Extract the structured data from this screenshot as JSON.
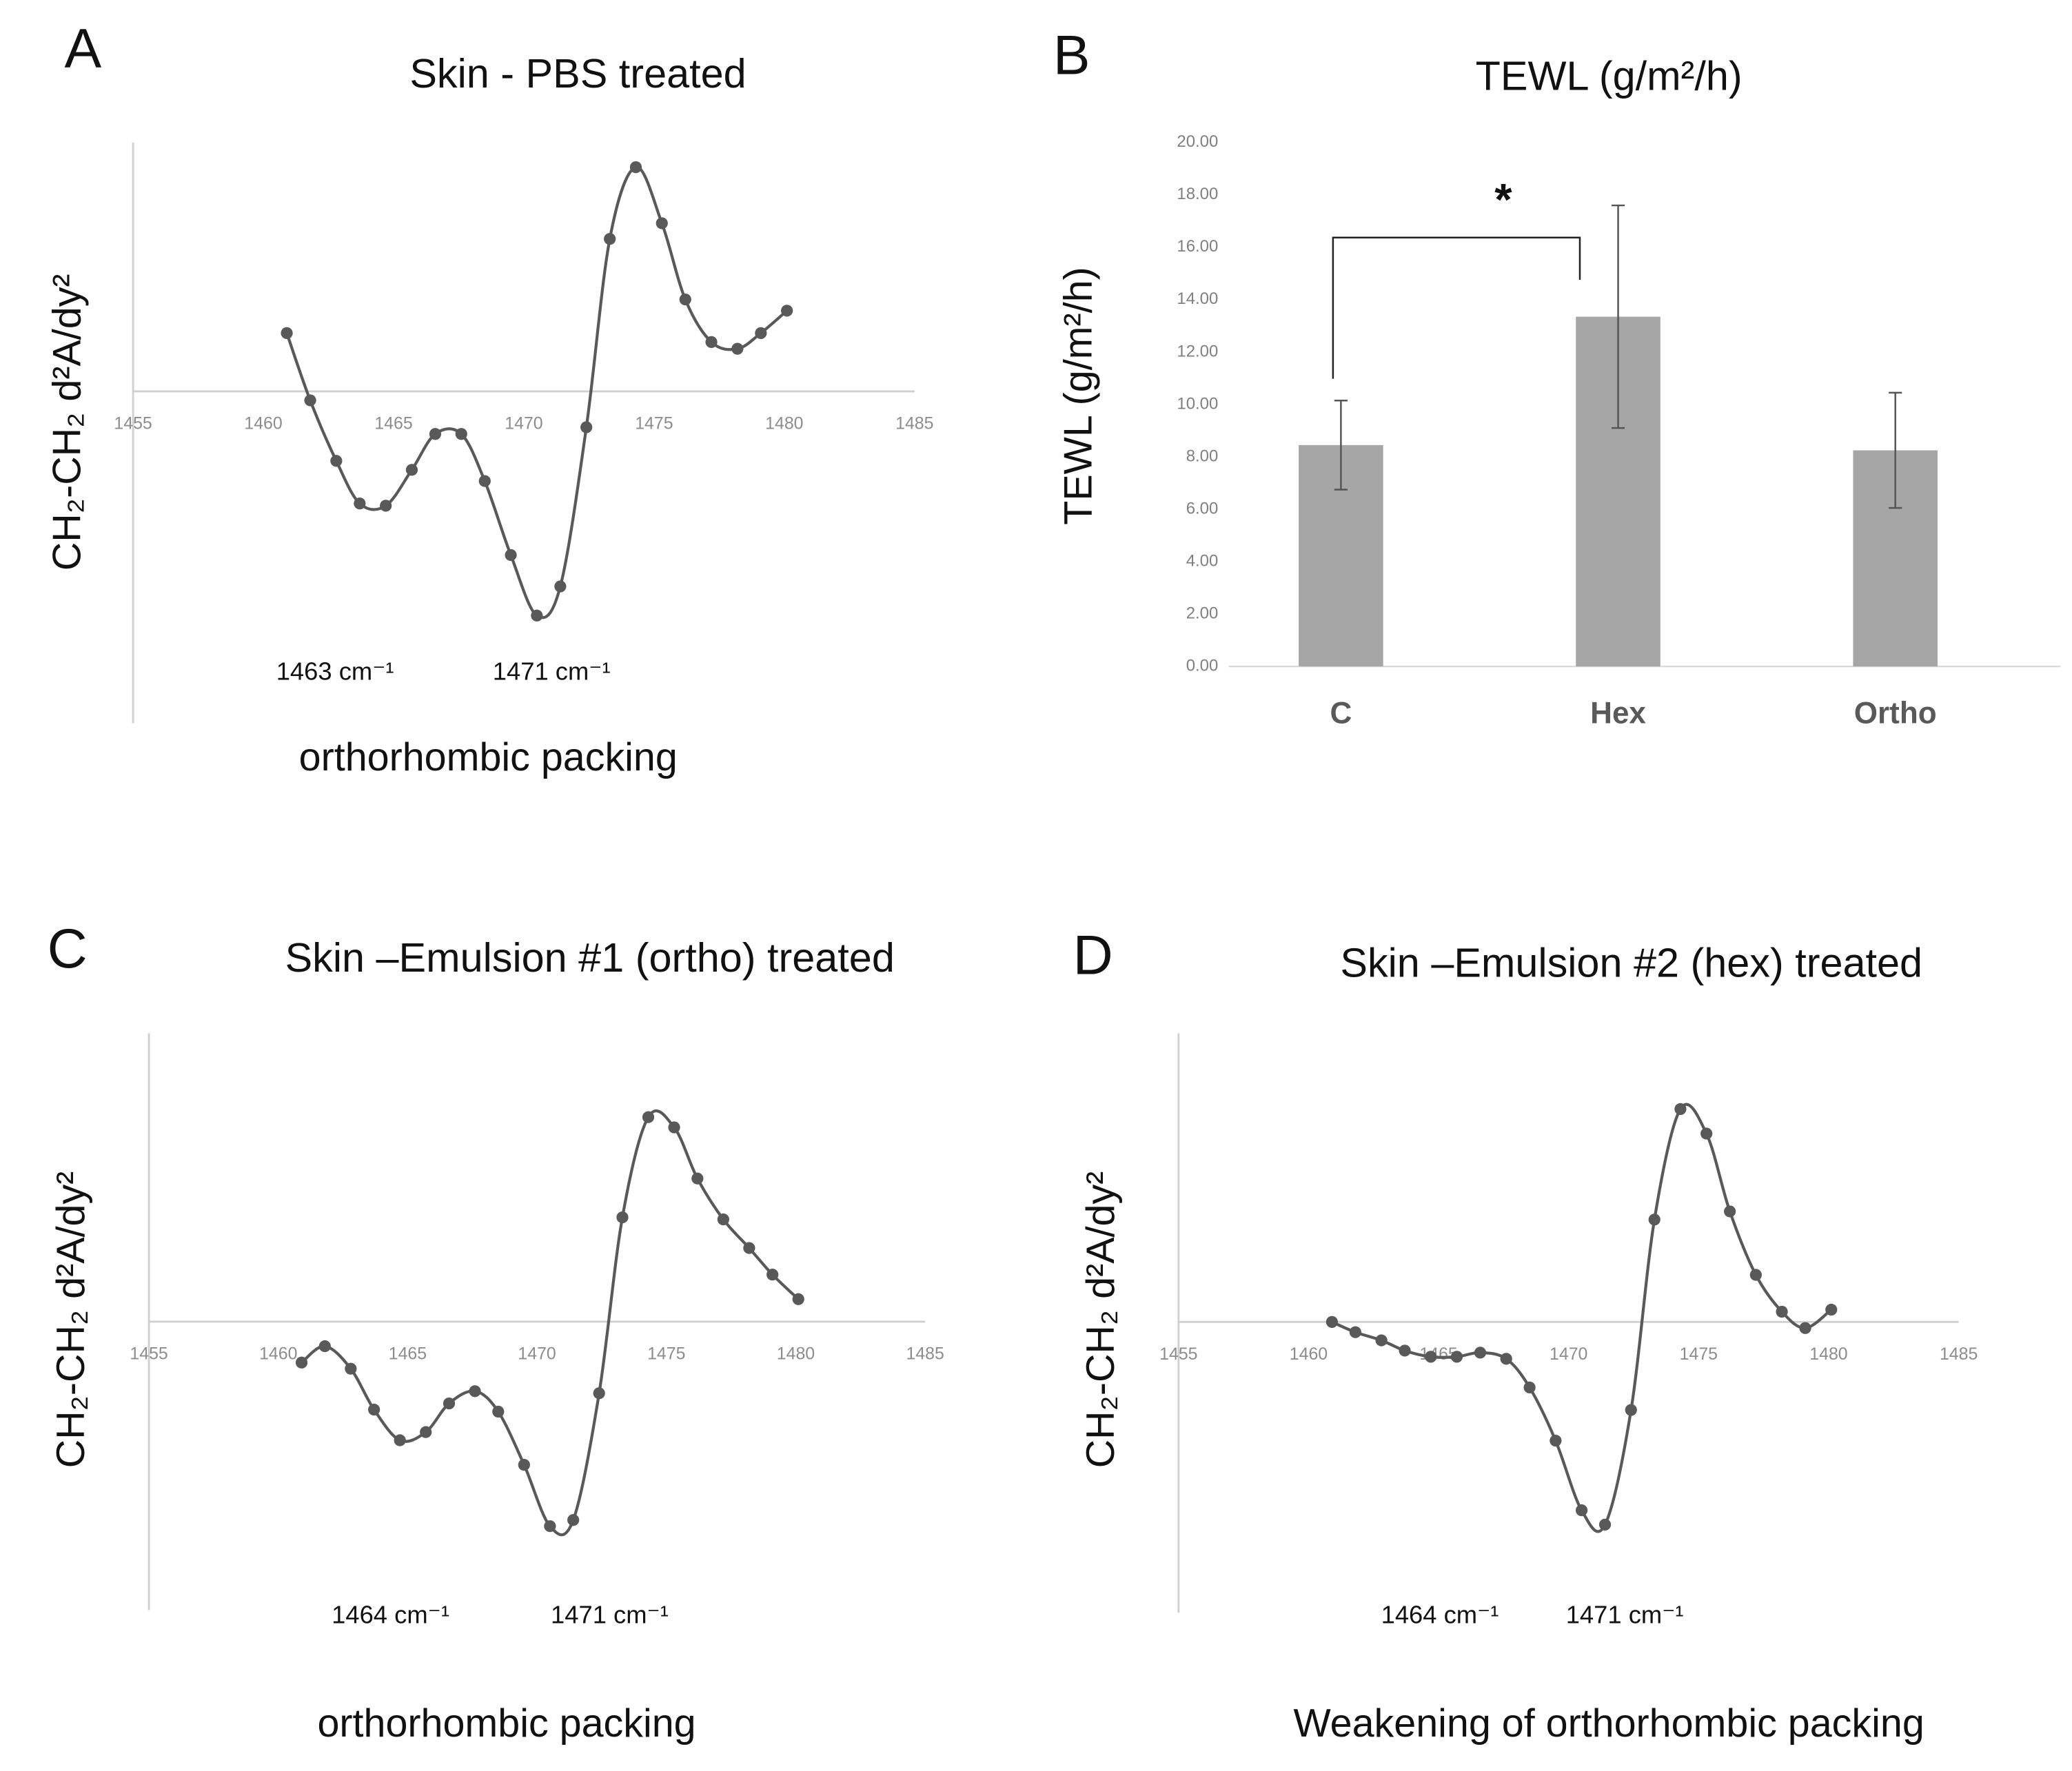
{
  "chart_data": [
    {
      "type": "line",
      "panel_label": "A",
      "title": "Skin - PBS  treated",
      "ylabel": "CH₂-CH₂ d²A/dy²",
      "x": [
        1460.9,
        1461.8,
        1462.8,
        1463.7,
        1464.7,
        1465.7,
        1466.6,
        1467.6,
        1468.5,
        1469.5,
        1470.5,
        1471.4,
        1472.4,
        1473.3,
        1474.3,
        1475.3,
        1476.2,
        1477.2,
        1478.2,
        1479.1,
        1480.1
      ],
      "values": [
        0.26,
        -0.04,
        -0.31,
        -0.5,
        -0.51,
        -0.35,
        -0.19,
        -0.19,
        -0.4,
        -0.73,
        -1.0,
        -0.87,
        -0.16,
        0.68,
        1.0,
        0.75,
        0.41,
        0.22,
        0.19,
        0.26,
        0.36
      ],
      "color": "#595959",
      "xlim": [
        1455,
        1485
      ],
      "ylim": [
        -1.48,
        1.11
      ],
      "xticks": [
        1455,
        1460,
        1465,
        1470,
        1475,
        1480,
        1485
      ],
      "annotations": [
        "1463 cm⁻¹",
        "1471 cm⁻¹"
      ],
      "note": "orthorhombic packing"
    },
    {
      "type": "bar",
      "panel_label": "B",
      "title": "TEWL (g/m²/h)",
      "ylabel": "TEWL (g/m²/h)",
      "categories": [
        "C",
        "Hex",
        "Ortho"
      ],
      "values": [
        8.45,
        13.35,
        8.25
      ],
      "errors": [
        1.7,
        4.25,
        2.2
      ],
      "color": "#a6a6a6",
      "ylim": [
        0,
        20
      ],
      "yticks": [
        {
          "value": 0,
          "label": "0.00"
        },
        {
          "value": 2,
          "label": "2.00"
        },
        {
          "value": 4,
          "label": "4.00"
        },
        {
          "value": 6,
          "label": "6.00"
        },
        {
          "value": 8,
          "label": "8.00"
        },
        {
          "value": 10,
          "label": "10.00"
        },
        {
          "value": 12,
          "label": "12.00"
        },
        {
          "value": 14,
          "label": "14.00"
        },
        {
          "value": 16,
          "label": "16.00"
        },
        {
          "value": 18,
          "label": "18.00"
        },
        {
          "value": 20,
          "label": "20.00"
        }
      ],
      "annotations": [
        "*"
      ]
    },
    {
      "type": "line",
      "panel_label": "C",
      "title": "Skin –Emulsion #1 (ortho)  treated",
      "ylabel": "CH₂-CH₂ d²A/dy²",
      "x": [
        1460.9,
        1461.8,
        1462.8,
        1463.7,
        1464.7,
        1465.7,
        1466.6,
        1467.6,
        1468.5,
        1469.5,
        1470.5,
        1471.4,
        1472.4,
        1473.3,
        1474.3,
        1475.3,
        1476.2,
        1477.2,
        1478.2,
        1479.1,
        1480.1
      ],
      "values": [
        -0.2,
        -0.12,
        -0.23,
        -0.43,
        -0.58,
        -0.54,
        -0.4,
        -0.34,
        -0.44,
        -0.7,
        -1.0,
        -0.97,
        -0.35,
        0.51,
        1.0,
        0.95,
        0.7,
        0.5,
        0.36,
        0.23,
        0.11
      ],
      "color": "#595959",
      "xlim": [
        1455,
        1485
      ],
      "ylim": [
        -1.41,
        1.41
      ],
      "xticks": [
        1455,
        1460,
        1465,
        1470,
        1475,
        1480,
        1485
      ],
      "annotations": [
        "1464 cm⁻¹",
        "1471 cm⁻¹"
      ],
      "note": "orthorhombic packing"
    },
    {
      "type": "line",
      "panel_label": "D",
      "title": "Skin –Emulsion #2 (hex) treated",
      "ylabel": "CH₂-CH₂ d²A/dy²",
      "x": [
        1460.9,
        1461.8,
        1462.8,
        1463.7,
        1464.7,
        1465.7,
        1466.6,
        1467.6,
        1468.5,
        1469.5,
        1470.5,
        1471.4,
        1472.4,
        1473.3,
        1474.3,
        1475.3,
        1476.2,
        1477.2,
        1478.2,
        1479.1,
        1480.1
      ],
      "values": [
        0,
        -0.05,
        -0.09,
        -0.14,
        -0.17,
        -0.17,
        -0.15,
        -0.18,
        -0.32,
        -0.58,
        -0.92,
        -0.99,
        -0.43,
        0.5,
        1.04,
        0.92,
        0.54,
        0.23,
        0.05,
        -0.03,
        0.06
      ],
      "color": "#595959",
      "xlim": [
        1455,
        1485
      ],
      "ylim": [
        -1.42,
        1.41
      ],
      "xticks": [
        1455,
        1460,
        1465,
        1470,
        1475,
        1480,
        1485
      ],
      "annotations": [
        "1464 cm⁻¹",
        "1471 cm⁻¹"
      ],
      "note": "Weakening of orthorhombic packing"
    }
  ]
}
